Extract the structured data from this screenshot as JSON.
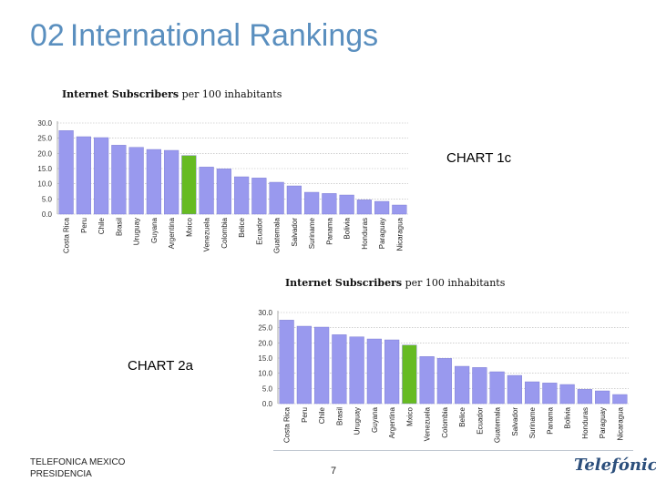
{
  "slide": {
    "number": "02",
    "title": "International Rankings",
    "footer_line1": "TELEFONICA MEXICO",
    "footer_line2": "PRESIDENCIA",
    "page": "7",
    "logo": "Telefónica"
  },
  "labels": {
    "chart1": "CHART 1c",
    "chart2": "CHART 2a"
  },
  "colors": {
    "bar": "#9999ee",
    "highlight": "#66bb22",
    "title": "#5a8fbf"
  },
  "chart_data": [
    {
      "type": "bar",
      "title_bold": "Internet Subscribers",
      "title_rest": " per 100 inhabitants",
      "categories": [
        "Costa Rica",
        "Peru",
        "Chile",
        "Brasil",
        "Uruguay",
        "Guyana",
        "Argentina",
        "Mxico",
        "Venezuela",
        "Colombia",
        "Belice",
        "Ecuador",
        "Guatemala",
        "Salvador",
        "Suriname",
        "Panama",
        "Bolivia",
        "Honduras",
        "Paraguay",
        "Nicaragua"
      ],
      "values": [
        27.5,
        25.5,
        25.2,
        22.7,
        22.0,
        21.3,
        21.0,
        19.3,
        15.5,
        14.9,
        12.3,
        11.9,
        10.5,
        9.3,
        7.2,
        6.8,
        6.3,
        4.7,
        4.2,
        3.0
      ],
      "highlight_index": 7,
      "ylim": [
        0,
        30
      ],
      "yticks": [
        "0.0",
        "5.0",
        "10.0",
        "15.0",
        "20.0",
        "25.0",
        "30.0"
      ],
      "grid": true
    },
    {
      "type": "bar",
      "title_bold": "Internet Subscribers",
      "title_rest": " per 100 inhabitants",
      "categories": [
        "Costa Rica",
        "Peru",
        "Chile",
        "Brasil",
        "Uruguay",
        "Guyana",
        "Argentina",
        "Mxico",
        "Venezuela",
        "Colombia",
        "Belice",
        "Ecuador",
        "Guatemala",
        "Salvador",
        "Suriname",
        "Panama",
        "Bolivia",
        "Honduras",
        "Paraguay",
        "Nicaragua"
      ],
      "values": [
        27.5,
        25.5,
        25.2,
        22.7,
        22.0,
        21.3,
        21.0,
        19.3,
        15.5,
        14.9,
        12.3,
        11.9,
        10.5,
        9.3,
        7.2,
        6.8,
        6.3,
        4.7,
        4.2,
        3.0
      ],
      "highlight_index": 7,
      "ylim": [
        0,
        30
      ],
      "yticks": [
        "0.0",
        "5.0",
        "10.0",
        "15.0",
        "20.0",
        "25.0",
        "30.0"
      ],
      "grid": true
    }
  ]
}
